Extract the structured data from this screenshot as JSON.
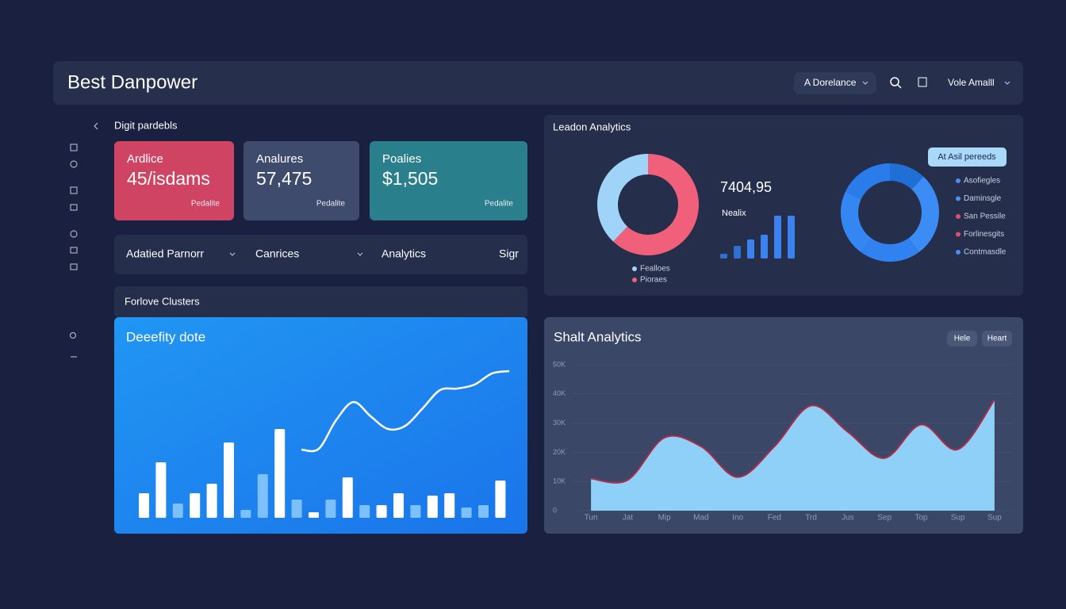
{
  "header": {
    "title": "Best Danpower",
    "dropdown": "A Dorelance",
    "user": "Vole Amalll"
  },
  "sidebar": {
    "heading": "Digit pardebls"
  },
  "cards": [
    {
      "label": "Ardlice",
      "value": "45/isdams",
      "note": "Pedalite",
      "color": "#cf4463"
    },
    {
      "label": "Analures",
      "value": "57,475",
      "note": "Pedalite",
      "color": "#3e4b6c"
    },
    {
      "label": "Poalies",
      "value": "$1,505",
      "note": "Pedalite",
      "color": "#2a7f8c"
    }
  ],
  "tabs": [
    "Adatied Parnorr",
    "Canrices",
    "Analytics",
    "Sigr"
  ],
  "clusters": {
    "title": "Forlove Clusters",
    "chart_title": "Deeefity dote",
    "bars": {
      "type": "bar",
      "values": [
        31,
        70,
        18,
        31,
        43,
        95,
        10,
        55,
        112,
        23,
        7,
        23,
        51,
        16,
        16,
        31,
        16,
        28,
        31,
        13,
        16,
        47
      ],
      "colors": [
        "#fff",
        "#fff",
        "#7cc0ff",
        "#fff",
        "#fff",
        "#fff",
        "#7cc0ff",
        "#7cc0ff",
        "#fff",
        "#7cc0ff",
        "#fff",
        "#7cc0ff",
        "#fff",
        "#7cc0ff",
        "#fff",
        "#fff",
        "#7cc0ff",
        "#fff",
        "#fff",
        "#7cc0ff",
        "#7cc0ff",
        "#fff"
      ]
    },
    "line": {
      "type": "line",
      "values": [
        33,
        34,
        70,
        93,
        75,
        59,
        63,
        85,
        108,
        110,
        115,
        129,
        132
      ],
      "color": "#ffffff"
    }
  },
  "leadon": {
    "title": "Leadon Analytics",
    "stat": "7404,95",
    "stat_label": "Nealix",
    "badge": "At Asil pereeds",
    "donut1": {
      "type": "donut",
      "categories": [
        "Fealloes",
        "Pioraes"
      ],
      "values": [
        38,
        62
      ],
      "colors": [
        "#9fd3f7",
        "#f0607a"
      ]
    },
    "mini_bars": {
      "type": "bar",
      "values": [
        6,
        16,
        24,
        30,
        54,
        54
      ],
      "colors": [
        "#2f6fd0",
        "#2f6fd0",
        "#3b82f0",
        "#3b82f0",
        "#3b82f0",
        "#3b82f0"
      ]
    },
    "donut2": {
      "type": "donut",
      "categories": [
        "Asofiegles",
        "Daminsgle",
        "San Pessile",
        "Forlinesgits",
        "Contmasdle"
      ],
      "values": [
        12,
        28,
        20,
        22,
        18
      ],
      "colors": [
        "#1f6fd6",
        "#3b8cf5",
        "#2f82ef",
        "#3486f2",
        "#2b7ceb"
      ]
    }
  },
  "shalt": {
    "title": "Shalt Analytics",
    "buttons": [
      "Hele",
      "Heart"
    ],
    "chart": {
      "type": "area",
      "categories": [
        "Tun",
        "Jat",
        "Mip",
        "Mad",
        "Ino",
        "Fed",
        "Trd",
        "Jus",
        "Sep",
        "Top",
        "Sup",
        "Sup"
      ],
      "values": [
        11000,
        10500,
        25000,
        22000,
        11500,
        22000,
        36000,
        27000,
        18000,
        29500,
        21000,
        38000
      ],
      "ylim": [
        0,
        50000
      ],
      "yticks": [
        {
          "value": 50000,
          "label": "50K"
        },
        {
          "value": 40000,
          "label": "40K"
        },
        {
          "value": 30000,
          "label": "30K"
        },
        {
          "value": 20000,
          "label": "20K"
        },
        {
          "value": 10000,
          "label": "10K"
        },
        0
      ],
      "color": "#8fd0f8",
      "line_color": "#b02a4a",
      "grid": true
    }
  }
}
